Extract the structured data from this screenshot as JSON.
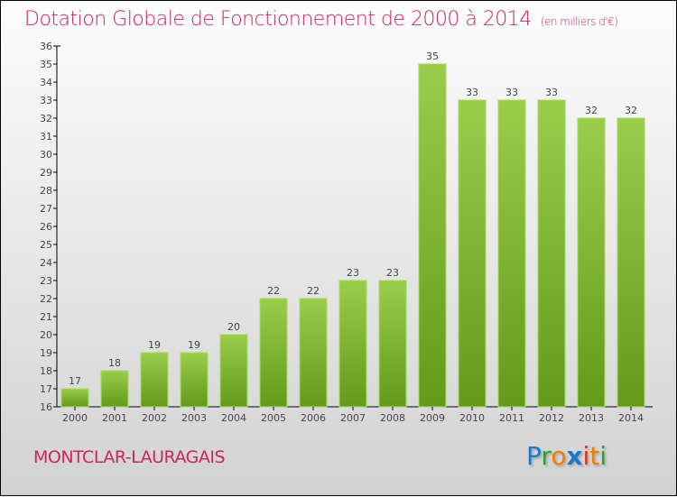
{
  "chart_data": {
    "type": "bar",
    "title": "Dotation Globale de Fonctionnement de 2000 à 2014",
    "subtitle": "(en milliers d'€)",
    "categories": [
      "2000",
      "2001",
      "2002",
      "2003",
      "2004",
      "2005",
      "2006",
      "2007",
      "2008",
      "2009",
      "2010",
      "2011",
      "2012",
      "2013",
      "2014"
    ],
    "values": [
      17,
      18,
      19,
      19,
      20,
      22,
      22,
      23,
      23,
      35,
      33,
      33,
      33,
      32,
      32
    ],
    "ylim": [
      16,
      36
    ],
    "yticks": [
      16,
      17,
      18,
      19,
      20,
      21,
      22,
      23,
      24,
      25,
      26,
      27,
      28,
      29,
      30,
      31,
      32,
      33,
      34,
      35,
      36
    ],
    "xlabel": "",
    "ylabel": "",
    "grid": false,
    "bar_color_top": "#9acd4a",
    "bar_color_bottom": "#64991a"
  },
  "commune": "MONTCLAR-LAURAGAIS",
  "logo": {
    "text": "Proxiti",
    "colors": [
      "#1f78c8",
      "#2aa02a",
      "#f07d00",
      "#1f78c8",
      "#e03010",
      "#f07d00",
      "#2aa02a"
    ]
  }
}
